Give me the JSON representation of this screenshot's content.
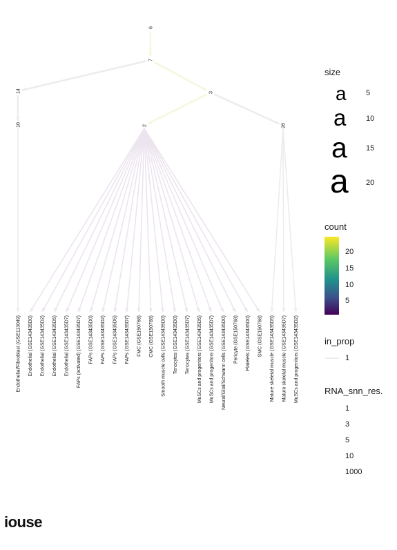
{
  "tree": {
    "internal_nodes": [
      {
        "id": "6"
      },
      {
        "id": "7"
      },
      {
        "id": "14"
      },
      {
        "id": "3"
      },
      {
        "id": "10"
      },
      {
        "id": "2"
      },
      {
        "id": "26"
      }
    ],
    "edges": [
      {
        "from": "6",
        "to": "7"
      },
      {
        "from": "7",
        "to": "14"
      },
      {
        "from": "7",
        "to": "3"
      },
      {
        "from": "14",
        "to": "10"
      },
      {
        "from": "3",
        "to": "2"
      },
      {
        "from": "3",
        "to": "26"
      }
    ],
    "leaves": [
      {
        "label": "Endothelial/Fibroblast (GSE113049)",
        "parent": "10"
      },
      {
        "label": "Endothelial (GSE143435D0)",
        "parent": "2"
      },
      {
        "label": "Endothelial (GSE143435D2)",
        "parent": "2"
      },
      {
        "label": "Endothelial (GSE143435D5)",
        "parent": "2"
      },
      {
        "label": "Endothelial (GSE143435D7)",
        "parent": "2"
      },
      {
        "label": "FAPs (activated) (GSE143435D7)",
        "parent": "2"
      },
      {
        "label": "FAPs (GSE143435D0)",
        "parent": "2"
      },
      {
        "label": "FAPs (GSE143435D2)",
        "parent": "2"
      },
      {
        "label": "FAPs (GSE143435D5)",
        "parent": "2"
      },
      {
        "label": "FAPs (GSE143435D7)",
        "parent": "2"
      },
      {
        "label": "FMC (GSE150768)",
        "parent": "2"
      },
      {
        "label": "CMC (GSE150768)",
        "parent": "2"
      },
      {
        "label": "Smooth muscle cells (GSE143435D0)",
        "parent": "2"
      },
      {
        "label": "Tenocytes (GSE143435D0)",
        "parent": "2"
      },
      {
        "label": "Tenocytes (GSE143435D7)",
        "parent": "2"
      },
      {
        "label": "MuSCs and progenitors (GSE143435D5)",
        "parent": "2"
      },
      {
        "label": "MuSCs and progenitors (GSE143435D7)",
        "parent": "2"
      },
      {
        "label": "Neural/Glial/Schwann cells (GSE143435D0)",
        "parent": "2"
      },
      {
        "label": "Pericyte (GSE150768)",
        "parent": "2"
      },
      {
        "label": "Platelets (GSE143435D0)",
        "parent": "2"
      },
      {
        "label": "SMC (GSE150768)",
        "parent": "2"
      },
      {
        "label": "Mature skeletal muscle (GSE143435D5)",
        "parent": "26"
      },
      {
        "label": "Mature skeletal muscle (GSE143435D7)",
        "parent": "26"
      },
      {
        "label": "MuSCs and progenitors (GSE143435D2)",
        "parent": "26"
      }
    ]
  },
  "legend": {
    "size": {
      "title": "size",
      "glyph": "a",
      "entries": [
        "5",
        "10",
        "15",
        "20"
      ]
    },
    "count": {
      "title": "count",
      "ticks": [
        "20",
        "15",
        "10",
        "5"
      ],
      "colors": [
        "#fde725",
        "#5ec962",
        "#21918c",
        "#3b528b",
        "#440154"
      ]
    },
    "in_prop": {
      "title": "in_prop",
      "entries": [
        "1"
      ]
    },
    "resolution": {
      "title": "RNA_snn_res.",
      "entries": [
        "1",
        "3",
        "5",
        "10",
        "1000"
      ]
    }
  },
  "footer_text": "iouse",
  "colors": {
    "edge": "#ececec",
    "edge_light_green": "#f2f8dc",
    "edge_light_purple": "#ece4ee"
  }
}
